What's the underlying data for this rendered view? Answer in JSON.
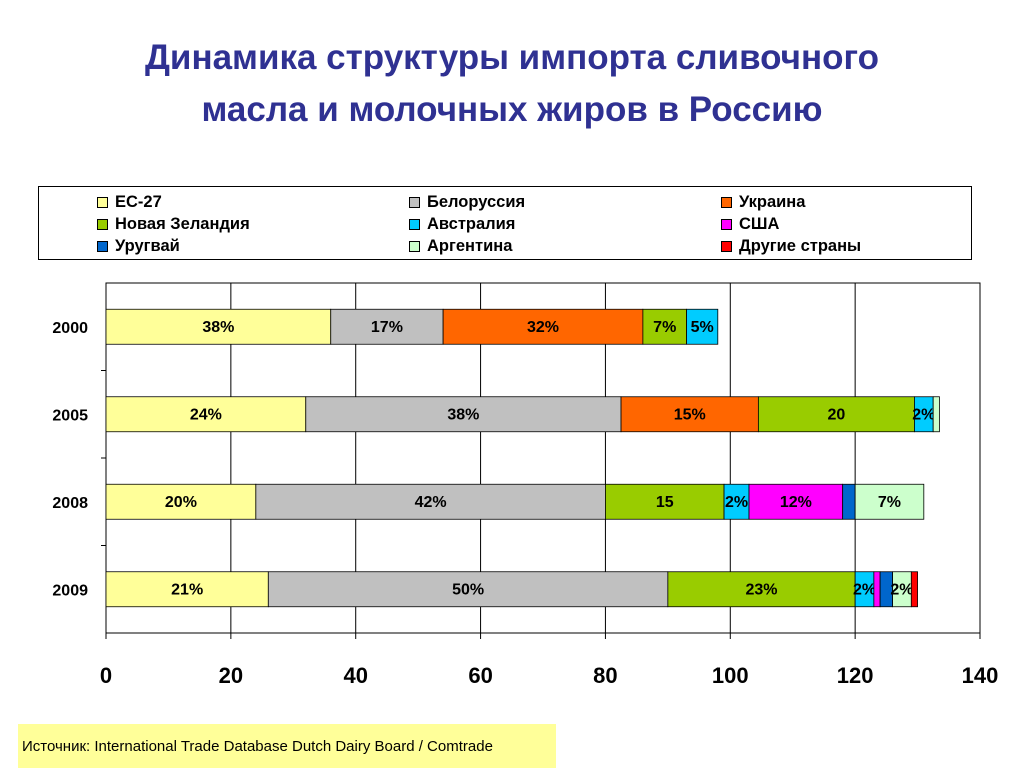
{
  "slide": {
    "title_line1": "Динамика структуры импорта сливочного",
    "title_line2": "масла и молочных жиров в Россию",
    "source": "Источник: International Trade Database Dutch Dairy Board / Comtrade"
  },
  "colors": {
    "title": "#2f3192",
    "source_bg": "#ffff99",
    "grid": "#000000"
  },
  "chart_data": {
    "type": "bar",
    "orientation": "horizontal",
    "stacked": true,
    "categories": [
      "2000",
      "2005",
      "2008",
      "2009"
    ],
    "xlim": [
      0,
      140
    ],
    "xticks": [
      "0",
      "20",
      "40",
      "60",
      "80",
      "100",
      "120",
      "140"
    ],
    "grid": true,
    "legend_position": "top",
    "series": [
      {
        "name": "ЕС-27",
        "color": "#ffff99",
        "values": [
          36,
          32,
          24,
          26
        ],
        "labels": [
          "38%",
          "24%",
          "20%",
          "21%"
        ]
      },
      {
        "name": "Белоруссия",
        "color": "#c0c0c0",
        "values": [
          18,
          50.5,
          56,
          64
        ],
        "labels": [
          "17%",
          "38%",
          "42%",
          "50%"
        ]
      },
      {
        "name": "Украина",
        "color": "#ff6600",
        "values": [
          32,
          22,
          0,
          0
        ],
        "labels": [
          "32%",
          "15%",
          "",
          ""
        ]
      },
      {
        "name": "Новая Зеландия",
        "color": "#99cc00",
        "values": [
          7,
          25,
          19,
          30
        ],
        "labels": [
          "7%",
          "20",
          "15",
          "23%"
        ]
      },
      {
        "name": "Австралия",
        "color": "#00ccff",
        "values": [
          5,
          3,
          4,
          3
        ],
        "labels": [
          "5%",
          "2%",
          "2%",
          "2%"
        ]
      },
      {
        "name": "США",
        "color": "#ff00ff",
        "values": [
          0,
          0,
          15,
          1
        ],
        "labels": [
          "",
          "",
          "12%",
          ""
        ]
      },
      {
        "name": "Уругвай",
        "color": "#0066cc",
        "values": [
          0,
          0,
          2,
          2
        ],
        "labels": [
          "",
          "",
          "",
          ""
        ]
      },
      {
        "name": "Аргентина",
        "color": "#ccffcc",
        "values": [
          0,
          1,
          11,
          3
        ],
        "labels": [
          "",
          "",
          "7%",
          "2%"
        ]
      },
      {
        "name": "Другие страны",
        "color": "#ff0000",
        "values": [
          0,
          0,
          0,
          1
        ],
        "labels": [
          "",
          "",
          "",
          ""
        ]
      }
    ]
  }
}
